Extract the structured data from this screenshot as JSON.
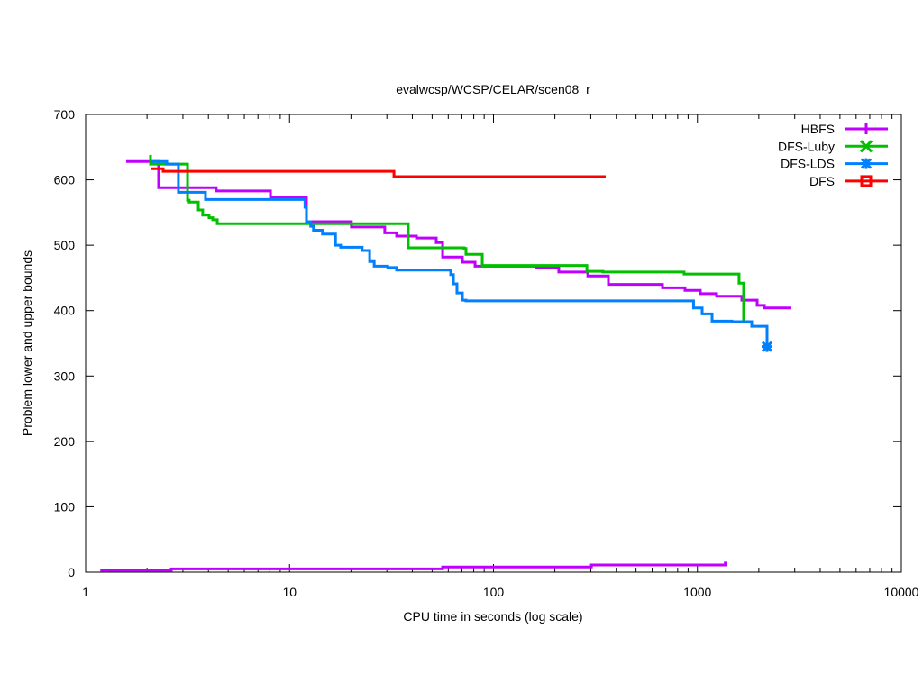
{
  "chart_data": {
    "type": "line",
    "title": "evalwcsp/WCSP/CELAR/scen08_r",
    "xlabel": "CPU time in seconds (log scale)",
    "ylabel": "Problem lower and upper bounds",
    "xscale": "log",
    "xlim": [
      1,
      10000
    ],
    "ylim": [
      0,
      700
    ],
    "xticks": [
      1,
      10,
      100,
      1000,
      10000
    ],
    "xtick_labels": [
      "1",
      "10",
      "100",
      "1000",
      "10000"
    ],
    "yticks": [
      0,
      100,
      200,
      300,
      400,
      500,
      600,
      700
    ],
    "ytick_labels": [
      "0",
      "100",
      "200",
      "300",
      "400",
      "500",
      "600",
      "700"
    ],
    "grid": false,
    "legend_position": "top-right",
    "series": [
      {
        "name": "HBFS",
        "color": "#c000ff",
        "marker": "plus",
        "render": "steps",
        "points": [
          [
            1.58,
            628
          ],
          [
            2.28,
            588
          ],
          [
            4.37,
            583
          ],
          [
            8.06,
            573
          ],
          [
            12.1,
            536
          ],
          [
            14.1,
            536
          ],
          [
            20.1,
            528
          ],
          [
            29.3,
            519
          ],
          [
            33.5,
            514
          ],
          [
            41.9,
            511
          ],
          [
            52.4,
            504
          ],
          [
            56.3,
            482
          ],
          [
            70.4,
            474
          ],
          [
            81.2,
            468
          ],
          [
            162,
            466
          ],
          [
            209,
            459
          ],
          [
            290,
            453
          ],
          [
            366,
            440
          ],
          [
            674,
            435
          ],
          [
            869,
            431
          ],
          [
            1033,
            426
          ],
          [
            1242,
            422
          ],
          [
            1651,
            416
          ],
          [
            1963,
            408
          ],
          [
            2130,
            404
          ],
          [
            2890,
            404
          ]
        ]
      },
      {
        "name": "HBFS lower bound",
        "legend": false,
        "color": "#c000ff",
        "render": "steps",
        "points": [
          [
            1.18,
            3
          ],
          [
            2.63,
            5
          ],
          [
            56.3,
            8
          ],
          [
            302,
            11
          ],
          [
            1370,
            13
          ],
          [
            1370,
            16
          ]
        ]
      },
      {
        "name": "DFS-Luby",
        "color": "#00c000",
        "marker": "x",
        "render": "steps",
        "points": [
          [
            2.08,
            638
          ],
          [
            2.08,
            624
          ],
          [
            3.16,
            600
          ],
          [
            3.16,
            569
          ],
          [
            3.22,
            566
          ],
          [
            3.57,
            554
          ],
          [
            3.75,
            546
          ],
          [
            4.03,
            542
          ],
          [
            4.2,
            539
          ],
          [
            4.42,
            533
          ],
          [
            38.2,
            496
          ],
          [
            71.8,
            495
          ],
          [
            73.3,
            486
          ],
          [
            88.1,
            469
          ],
          [
            287,
            460
          ],
          [
            344,
            459
          ],
          [
            860,
            456
          ],
          [
            1600,
            442
          ],
          [
            1685,
            383
          ],
          [
            1685,
            383
          ]
        ]
      },
      {
        "name": "DFS-LDS",
        "color": "#0080ff",
        "marker": "star",
        "render": "steps",
        "points": [
          [
            2.1,
            628
          ],
          [
            2.5,
            624
          ],
          [
            2.85,
            581
          ],
          [
            3.87,
            570
          ],
          [
            11.9,
            558
          ],
          [
            12.1,
            536
          ],
          [
            12.7,
            529
          ],
          [
            13.1,
            523
          ],
          [
            14.5,
            517
          ],
          [
            16.8,
            500
          ],
          [
            17.8,
            497
          ],
          [
            22.7,
            492
          ],
          [
            24.7,
            475
          ],
          [
            26.0,
            468
          ],
          [
            30.3,
            466
          ],
          [
            33.5,
            462
          ],
          [
            61.7,
            455
          ],
          [
            63.6,
            441
          ],
          [
            66.2,
            427
          ],
          [
            70.4,
            416
          ],
          [
            73.3,
            415
          ],
          [
            957,
            404
          ],
          [
            1055,
            395
          ],
          [
            1180,
            384
          ],
          [
            1476,
            383
          ],
          [
            1846,
            376
          ],
          [
            2195,
            368
          ],
          [
            2195,
            345
          ]
        ]
      },
      {
        "name": "DFS",
        "color": "#ff0000",
        "marker": "square",
        "render": "steps",
        "points": [
          [
            2.1,
            617
          ],
          [
            2.4,
            613
          ],
          [
            32.5,
            605
          ],
          [
            355,
            605
          ]
        ]
      }
    ]
  }
}
